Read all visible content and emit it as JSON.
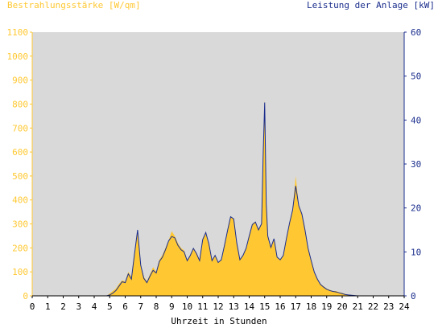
{
  "chart_data": {
    "type": "area",
    "left_axis_label": "Bestrahlungsstärke [W/qm]",
    "right_axis_label": "Leistung der Anlage [kW]",
    "xlabel": "Uhrzeit in Stunden",
    "x_ticks": [
      "0",
      "1",
      "2",
      "3",
      "4",
      "5",
      "6",
      "7",
      "8",
      "9",
      "10",
      "11",
      "12",
      "13",
      "14",
      "15",
      "16",
      "17",
      "18",
      "19",
      "20",
      "21",
      "22",
      "23",
      "24"
    ],
    "x_range": [
      0,
      24
    ],
    "y_left_range": [
      0,
      1100
    ],
    "y_left_ticks": [
      "0",
      "100",
      "200",
      "300",
      "400",
      "500",
      "600",
      "700",
      "800",
      "900",
      "1000",
      "1100"
    ],
    "y_right_range": [
      0,
      60
    ],
    "y_right_ticks": [
      "0",
      "10",
      "20",
      "30",
      "40",
      "50",
      "60"
    ],
    "grid": false,
    "colors": {
      "plot_background": "#d9d9d9",
      "irradiance_fill": "#ffc832",
      "power_line": "#1a2d8c",
      "left_axis_text": "#ffc832",
      "right_axis_text": "#1a2d8c",
      "axis_text": "#000000"
    },
    "series": [
      {
        "axis": "left",
        "style": "filled-area",
        "x": [
          0,
          4.8,
          5,
          5.2,
          5.4,
          5.6,
          5.8,
          6.0,
          6.2,
          6.4,
          6.6,
          6.8,
          7.0,
          7.2,
          7.4,
          7.6,
          7.8,
          8.0,
          8.2,
          8.4,
          8.6,
          8.8,
          9.0,
          9.2,
          9.4,
          9.6,
          9.8,
          10.0,
          10.2,
          10.4,
          10.6,
          10.8,
          11.0,
          11.2,
          11.4,
          11.6,
          11.8,
          12.0,
          12.2,
          12.4,
          12.6,
          12.8,
          13.0,
          13.2,
          13.4,
          13.6,
          13.8,
          14.0,
          14.2,
          14.4,
          14.6,
          14.8,
          14.9,
          15.0,
          15.1,
          15.2,
          15.4,
          15.6,
          15.8,
          16.0,
          16.2,
          16.4,
          16.6,
          16.8,
          17.0,
          17.2,
          17.4,
          17.6,
          17.8,
          18.0,
          18.2,
          18.4,
          18.6,
          18.8,
          19.0,
          19.2,
          19.4,
          19.6,
          19.8,
          20.0,
          20.2,
          20.4,
          21,
          24
        ],
        "y": [
          0,
          0,
          10,
          20,
          30,
          50,
          65,
          60,
          100,
          80,
          180,
          270,
          130,
          80,
          60,
          90,
          120,
          100,
          150,
          170,
          200,
          230,
          270,
          250,
          220,
          200,
          190,
          150,
          170,
          200,
          180,
          150,
          240,
          260,
          220,
          150,
          170,
          140,
          150,
          210,
          270,
          330,
          320,
          220,
          150,
          170,
          200,
          250,
          300,
          310,
          280,
          300,
          600,
          820,
          400,
          250,
          200,
          240,
          160,
          150,
          170,
          240,
          300,
          360,
          500,
          380,
          340,
          280,
          200,
          150,
          100,
          70,
          50,
          40,
          30,
          25,
          20,
          20,
          15,
          12,
          8,
          5,
          0,
          0
        ]
      },
      {
        "axis": "right",
        "style": "line",
        "x": [
          0,
          4.8,
          5,
          5.2,
          5.4,
          5.6,
          5.8,
          6.0,
          6.2,
          6.4,
          6.6,
          6.8,
          7.0,
          7.2,
          7.4,
          7.6,
          7.8,
          8.0,
          8.2,
          8.4,
          8.6,
          8.8,
          9.0,
          9.2,
          9.4,
          9.6,
          9.8,
          10.0,
          10.2,
          10.4,
          10.6,
          10.8,
          11.0,
          11.2,
          11.4,
          11.6,
          11.8,
          12.0,
          12.2,
          12.4,
          12.6,
          12.8,
          13.0,
          13.2,
          13.4,
          13.6,
          13.8,
          14.0,
          14.2,
          14.4,
          14.6,
          14.8,
          14.9,
          15.0,
          15.1,
          15.2,
          15.4,
          15.6,
          15.8,
          16.0,
          16.2,
          16.4,
          16.6,
          16.8,
          17.0,
          17.2,
          17.4,
          17.6,
          17.8,
          18.0,
          18.2,
          18.4,
          18.6,
          18.8,
          19.0,
          19.2,
          19.4,
          19.6,
          19.8,
          20.0,
          20.2,
          20.4,
          21,
          24
        ],
        "y": [
          0,
          0,
          0.2,
          0.6,
          1.2,
          2.2,
          3.2,
          3.0,
          5.0,
          3.8,
          9.5,
          15,
          7.0,
          4.0,
          3.0,
          4.5,
          5.8,
          5.2,
          7.8,
          8.8,
          10.5,
          12.5,
          13.5,
          13.2,
          11.5,
          10.5,
          10.0,
          8.0,
          9.2,
          10.8,
          9.6,
          8.0,
          12.8,
          14.4,
          11.8,
          8.0,
          9.2,
          7.6,
          8.2,
          11.4,
          14.8,
          18.0,
          17.5,
          12.0,
          8.2,
          9.2,
          10.8,
          13.6,
          16.2,
          16.8,
          15.0,
          16.4,
          32.0,
          44.0,
          21.0,
          13.6,
          11.0,
          13.0,
          8.8,
          8.2,
          9.2,
          13.0,
          16.5,
          19.5,
          25.0,
          20.5,
          18.6,
          15.0,
          10.8,
          8.0,
          5.4,
          3.8,
          2.6,
          2.0,
          1.5,
          1.2,
          1.0,
          0.9,
          0.7,
          0.5,
          0.3,
          0.2,
          0,
          0
        ]
      }
    ]
  }
}
